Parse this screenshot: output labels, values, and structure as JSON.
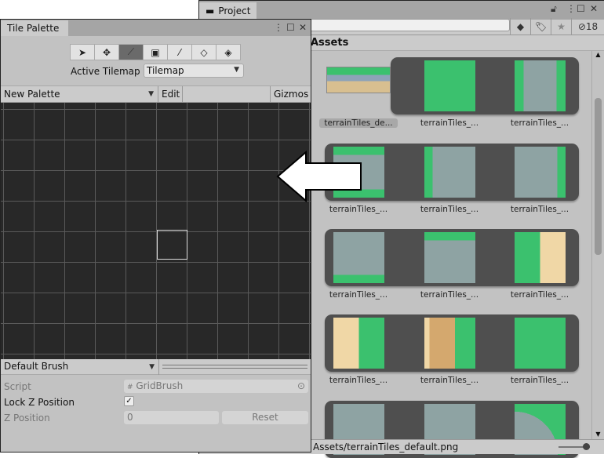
{
  "project": {
    "tab_label": "Project",
    "hidden_count": "18",
    "path_label": "Assets",
    "status_path": "Assets/terrainTiles_default.png",
    "rows": [
      {
        "first_is_texture": true,
        "labels": [
          "terrainTiles_de...",
          "terrainTiles_...",
          "terrainTiles_..."
        ],
        "tiles": [
          "grass",
          "road-v"
        ]
      },
      {
        "labels": [
          "terrainTiles_...",
          "terrainTiles_...",
          "terrainTiles_..."
        ],
        "tiles": [
          "road-h",
          "road-left",
          "road-right"
        ]
      },
      {
        "labels": [
          "terrainTiles_...",
          "terrainTiles_...",
          "terrainTiles_..."
        ],
        "tiles": [
          "road-bottom",
          "road-top",
          "grass-sand"
        ]
      },
      {
        "labels": [
          "terrainTiles_...",
          "terrainTiles_...",
          "terrainTiles_..."
        ],
        "tiles": [
          "sand-grass",
          "sand-mix",
          "grass"
        ]
      },
      {
        "labels": [],
        "tiles": [
          "road",
          "road",
          "grass-curve"
        ]
      }
    ],
    "colors": {
      "grass": "#3bc16e",
      "road": "#8ea3a3",
      "sand": "#f0d7a6"
    }
  },
  "palette": {
    "tab_label": "Tile Palette",
    "tools": [
      "select",
      "move",
      "paint",
      "box-fill",
      "picker",
      "erase",
      "flood-fill"
    ],
    "active_tool": "paint",
    "active_tilemap_label": "Active Tilemap",
    "active_tilemap_value": "Tilemap",
    "palette_name": "New Palette",
    "edit_label": "Edit",
    "gizmos_label": "Gizmos",
    "brush_name": "Default Brush",
    "script_label": "Script",
    "script_value": "GridBrush",
    "lock_z_label": "Lock Z Position",
    "lock_z_checked": true,
    "z_position_label": "Z Position",
    "z_position_value": "0",
    "reset_label": "Reset"
  }
}
